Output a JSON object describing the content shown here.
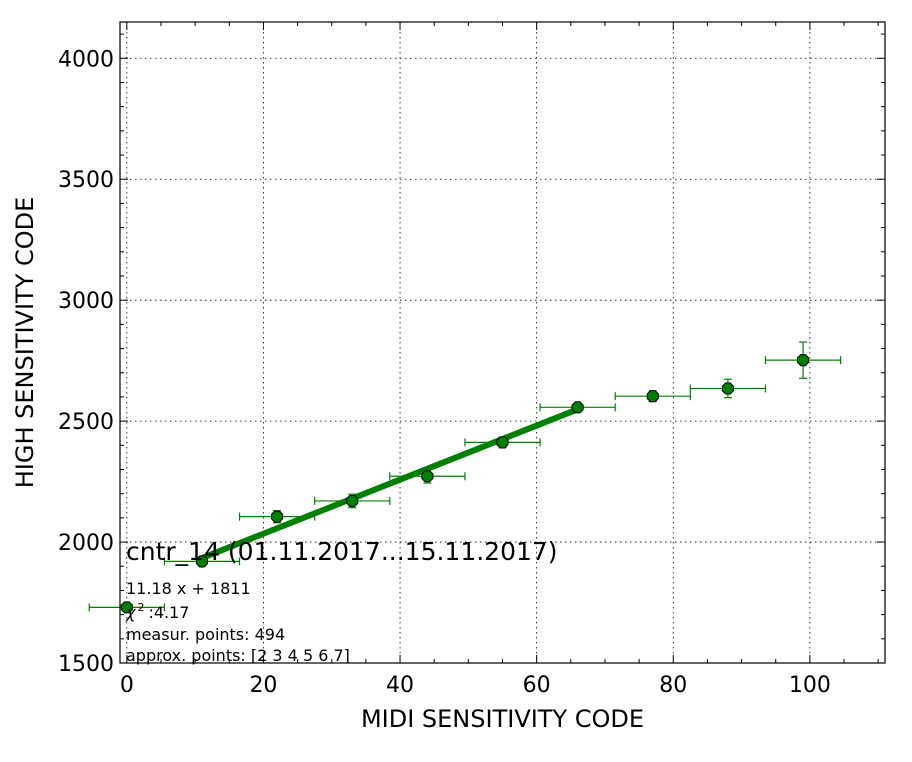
{
  "chart_data": {
    "type": "scatter",
    "xlabel": "MIDI SENSITIVITY CODE",
    "ylabel": "HIGH SENSITIVITY CODE",
    "xlim": [
      -1,
      111
    ],
    "ylim": [
      1500,
      4150
    ],
    "xticks": [
      0,
      20,
      40,
      60,
      80,
      100
    ],
    "yticks": [
      1500,
      2000,
      2500,
      3000,
      3500,
      4000
    ],
    "grid": true,
    "colors": {
      "marker": "#008000",
      "errorbar": "#008000",
      "fit": "#008000"
    },
    "points": [
      {
        "x": 0,
        "y": 1730,
        "xerr": 5.5,
        "yerr": 10
      },
      {
        "x": 11,
        "y": 1920,
        "xerr": 5.5,
        "yerr": 12
      },
      {
        "x": 22,
        "y": 2105,
        "xerr": 5.5,
        "yerr": 25
      },
      {
        "x": 33,
        "y": 2170,
        "xerr": 5.5,
        "yerr": 28
      },
      {
        "x": 44,
        "y": 2272,
        "xerr": 5.5,
        "yerr": 28
      },
      {
        "x": 55,
        "y": 2412,
        "xerr": 5.5,
        "yerr": 22
      },
      {
        "x": 66,
        "y": 2557,
        "xerr": 5.5,
        "yerr": 12
      },
      {
        "x": 77,
        "y": 2603,
        "xerr": 5.5,
        "yerr": 22
      },
      {
        "x": 88,
        "y": 2635,
        "xerr": 5.5,
        "yerr": 38
      },
      {
        "x": 99,
        "y": 2752,
        "xerr": 5.5,
        "yerr": 75
      }
    ],
    "fit": {
      "slope": 11.18,
      "intercept": 1811,
      "x_range": [
        11,
        66
      ]
    },
    "annotation": {
      "title": "cntr_14 (01.11.2017...15.11.2017)",
      "equation": "11.18 x + 1811",
      "chi_label": "χ",
      "chi_sup": "2",
      "chi_value": ":4.17",
      "measur_points": "measur. points: 494",
      "approx_points": "approx. points: [2 3 4 5 6 7]"
    }
  }
}
